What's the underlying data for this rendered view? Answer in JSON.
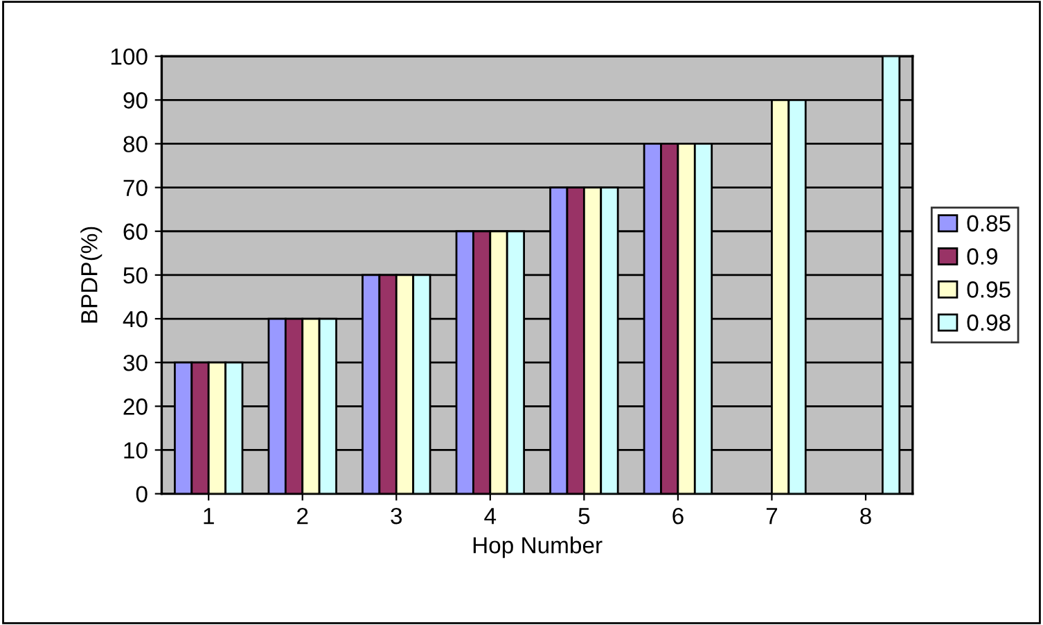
{
  "chart_data": {
    "type": "bar",
    "xlabel": "Hop Number",
    "ylabel": "BPDP(%)",
    "categories": [
      "1",
      "2",
      "3",
      "4",
      "5",
      "6",
      "7",
      "8"
    ],
    "series": [
      {
        "name": "0.85",
        "color": "#9999ff",
        "values": [
          30,
          40,
          50,
          60,
          70,
          80,
          null,
          null
        ]
      },
      {
        "name": "0.9",
        "color": "#993366",
        "values": [
          30,
          40,
          50,
          60,
          70,
          80,
          null,
          null
        ]
      },
      {
        "name": "0.95",
        "color": "#ffffcc",
        "values": [
          30,
          40,
          50,
          60,
          70,
          80,
          90,
          null
        ]
      },
      {
        "name": "0.98",
        "color": "#ccffff",
        "values": [
          30,
          40,
          50,
          60,
          70,
          80,
          90,
          100
        ]
      }
    ],
    "ylim": [
      0,
      100
    ],
    "yticks": [
      0,
      10,
      20,
      30,
      40,
      50,
      60,
      70,
      80,
      90,
      100
    ],
    "grid": "y",
    "legend": "right"
  }
}
